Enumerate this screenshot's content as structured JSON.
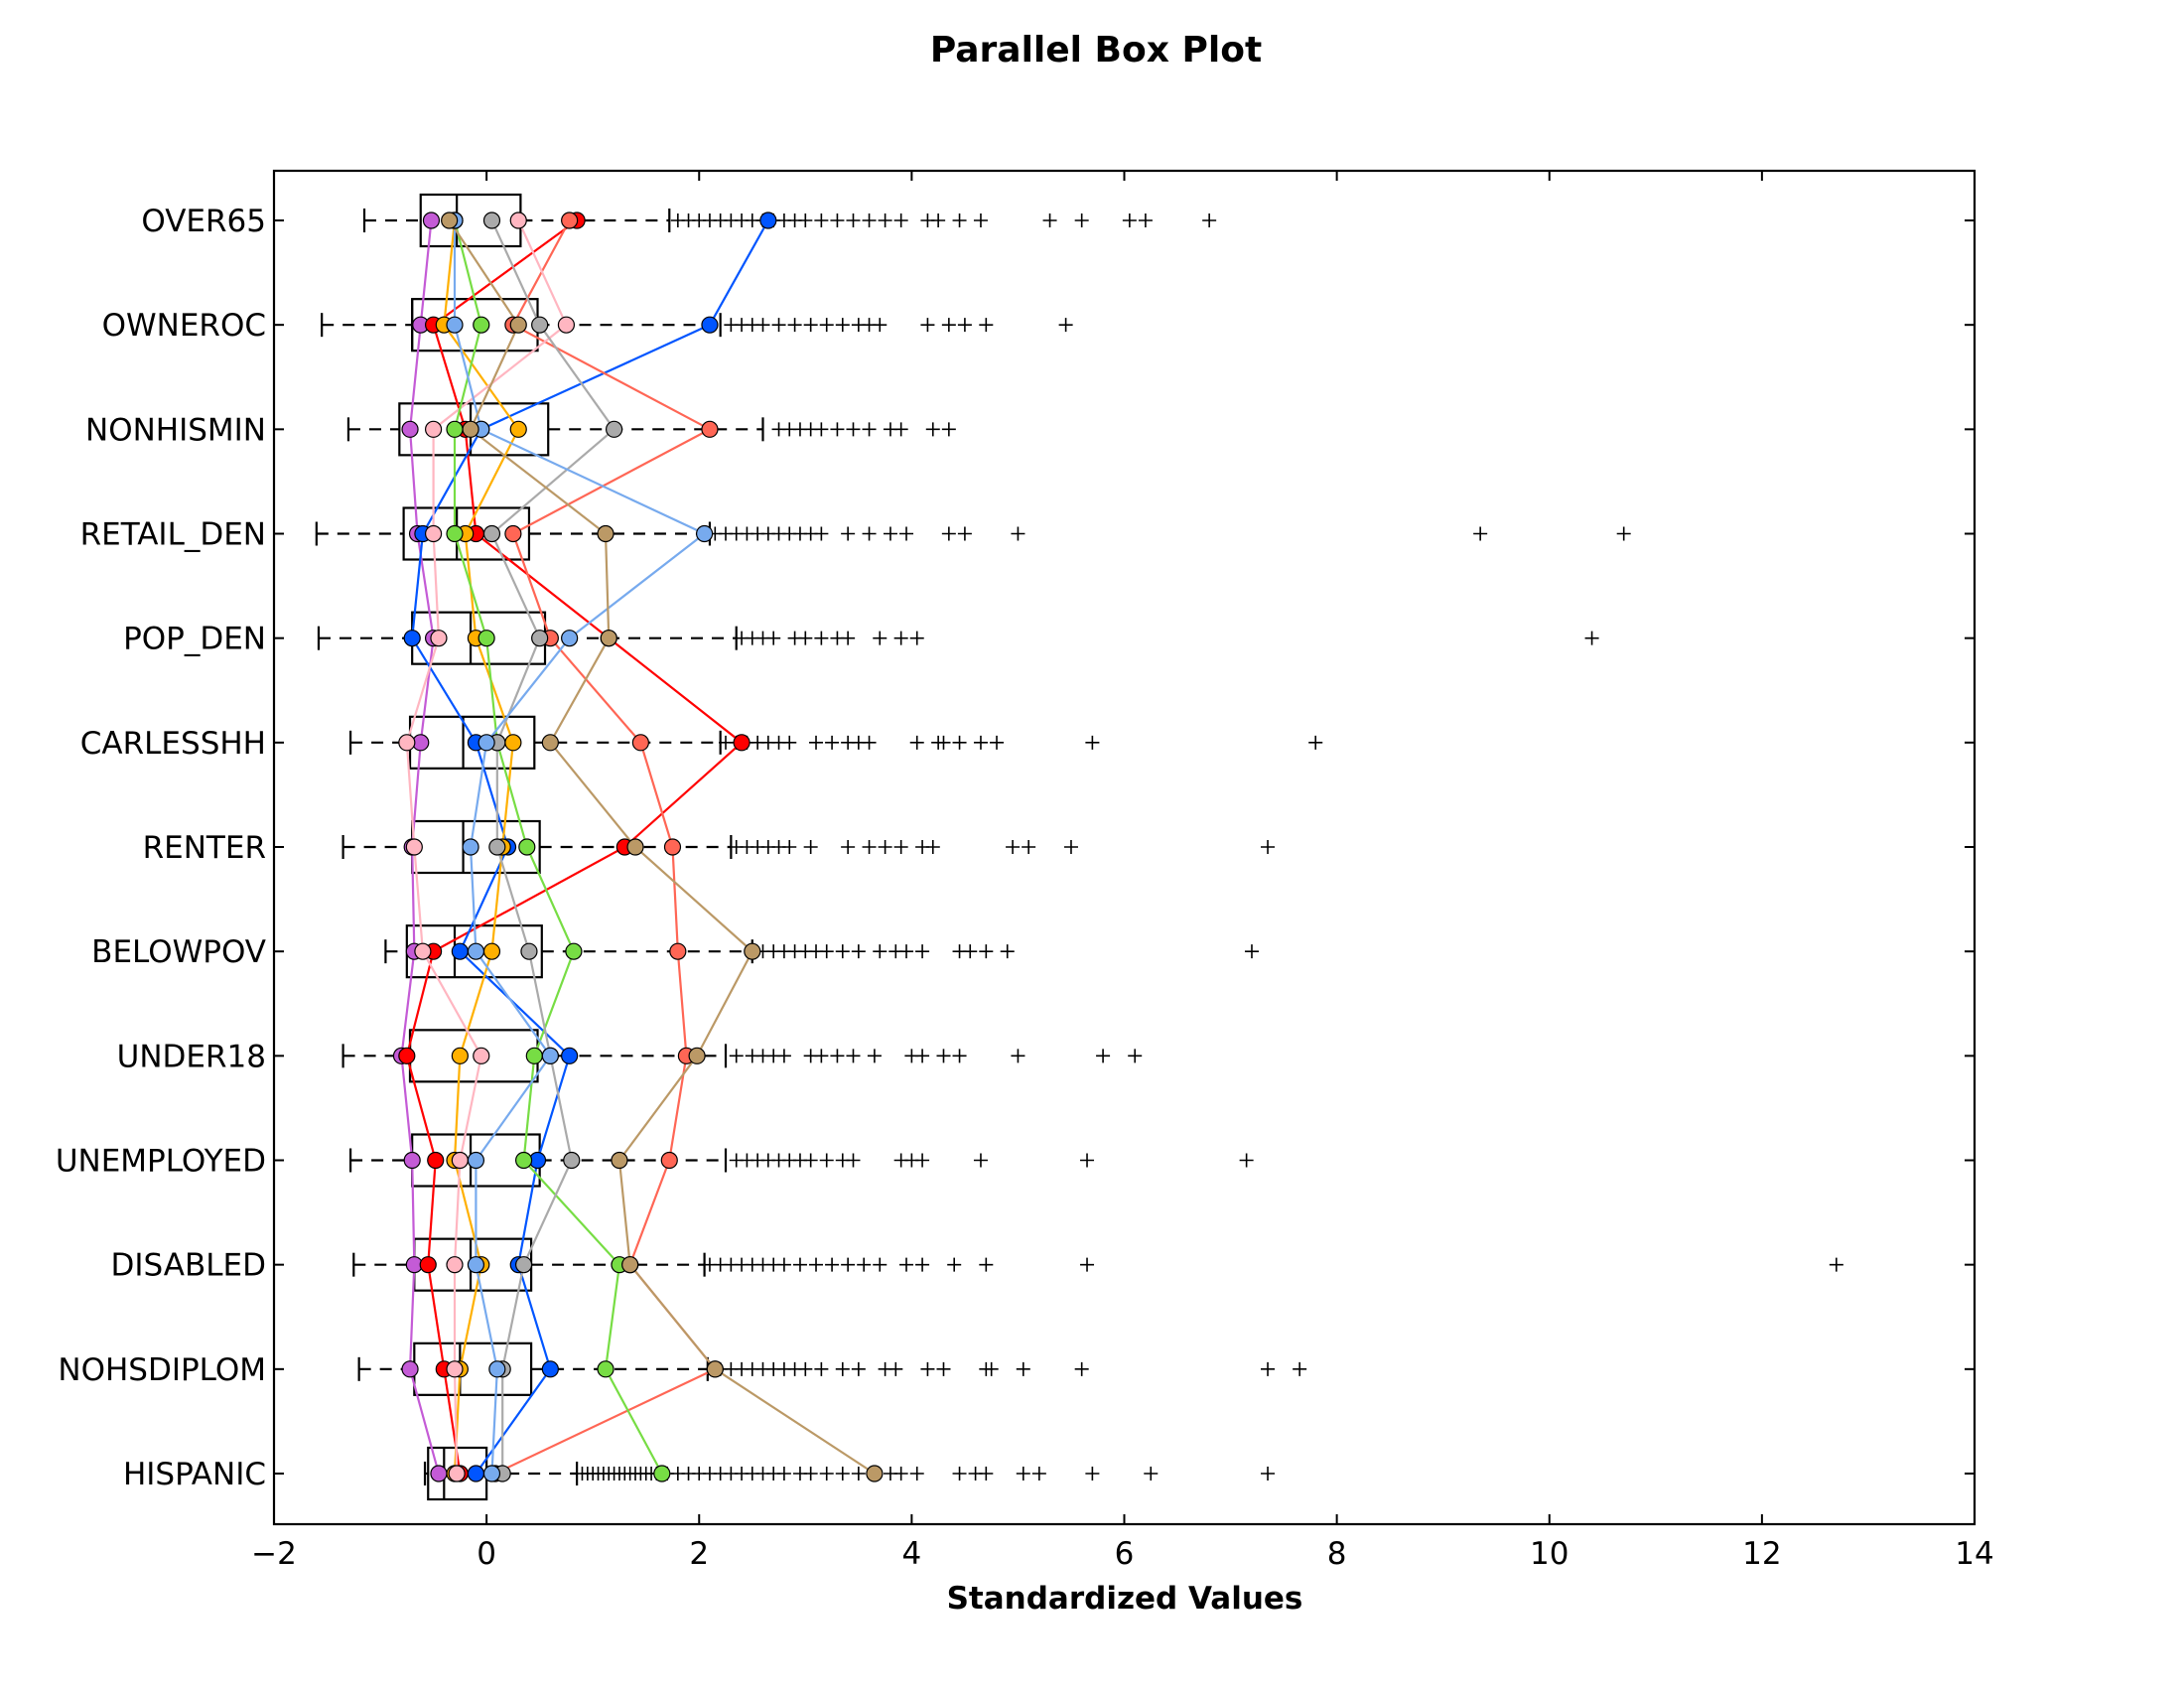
{
  "chart_data": {
    "type": "box",
    "title": "Parallel Box Plot",
    "xlabel": "Standardized Values",
    "ylabel": "",
    "xlim": [
      -2,
      14
    ],
    "xticks": [
      -2,
      0,
      2,
      4,
      6,
      8,
      10,
      12,
      14
    ],
    "xtick_labels": [
      "−2",
      "0",
      "2",
      "4",
      "6",
      "8",
      "10",
      "12",
      "14"
    ],
    "grid": false,
    "legend": "none",
    "categories": [
      "HISPANIC",
      "NOHSDIPLOM",
      "DISABLED",
      "UNEMPLOYED",
      "UNDER18",
      "BELOWPOV",
      "RENTER",
      "CARLESSHH",
      "POP_DEN",
      "RETAIL_DEN",
      "NONHISMIN",
      "OWNEROC",
      "OVER65"
    ],
    "boxes": [
      {
        "name": "HISPANIC",
        "whisker_low": -0.58,
        "q1": -0.55,
        "median": -0.4,
        "q3": 0.0,
        "whisker_high": 0.85,
        "outliers": [
          0.9,
          0.95,
          1.0,
          1.05,
          1.1,
          1.15,
          1.2,
          1.25,
          1.3,
          1.35,
          1.4,
          1.45,
          1.5,
          1.55,
          1.6,
          1.7,
          1.8,
          1.9,
          2.0,
          2.1,
          2.2,
          2.3,
          2.4,
          2.5,
          2.6,
          2.7,
          2.8,
          2.95,
          3.05,
          3.2,
          3.35,
          3.5,
          3.65,
          3.8,
          3.9,
          4.05,
          4.45,
          4.6,
          4.7,
          5.05,
          5.2,
          5.7,
          6.25,
          7.35
        ]
      },
      {
        "name": "NOHSDIPLOM",
        "whisker_low": -1.2,
        "q1": -0.68,
        "median": -0.25,
        "q3": 0.42,
        "whisker_high": 2.08,
        "outliers": [
          2.15,
          2.2,
          2.3,
          2.4,
          2.5,
          2.6,
          2.7,
          2.8,
          2.9,
          3.0,
          3.15,
          3.35,
          3.5,
          3.75,
          3.85,
          4.15,
          4.3,
          4.7,
          4.75,
          5.05,
          5.6,
          7.35,
          7.65
        ]
      },
      {
        "name": "DISABLED",
        "whisker_low": -1.25,
        "q1": -0.68,
        "median": -0.15,
        "q3": 0.42,
        "whisker_high": 2.05,
        "outliers": [
          2.1,
          2.2,
          2.3,
          2.4,
          2.5,
          2.6,
          2.7,
          2.8,
          2.95,
          3.1,
          3.25,
          3.4,
          3.55,
          3.7,
          3.95,
          4.1,
          4.4,
          4.7,
          5.65,
          12.7
        ]
      },
      {
        "name": "UNEMPLOYED",
        "whisker_low": -1.28,
        "q1": -0.7,
        "median": -0.15,
        "q3": 0.5,
        "whisker_high": 2.25,
        "outliers": [
          2.35,
          2.45,
          2.55,
          2.65,
          2.75,
          2.85,
          2.95,
          3.05,
          3.2,
          3.35,
          3.45,
          3.9,
          4.0,
          4.1,
          4.65,
          5.65,
          7.15
        ]
      },
      {
        "name": "UNDER18",
        "whisker_low": -1.35,
        "q1": -0.72,
        "median": -0.72,
        "q3": 0.48,
        "whisker_high": 2.25,
        "outliers": [
          2.35,
          2.5,
          2.6,
          2.7,
          2.8,
          3.05,
          3.15,
          3.3,
          3.45,
          3.65,
          4.0,
          4.1,
          4.3,
          4.45,
          5.0,
          5.8,
          6.1
        ]
      },
      {
        "name": "BELOWPOV",
        "whisker_low": -0.95,
        "q1": -0.75,
        "median": -0.3,
        "q3": 0.52,
        "whisker_high": 2.5,
        "outliers": [
          2.6,
          2.7,
          2.8,
          2.9,
          3.0,
          3.1,
          3.2,
          3.35,
          3.5,
          3.7,
          3.85,
          3.95,
          4.1,
          4.45,
          4.55,
          4.7,
          4.9,
          7.2
        ]
      },
      {
        "name": "RENTER",
        "whisker_low": -1.35,
        "q1": -0.7,
        "median": -0.22,
        "q3": 0.5,
        "whisker_high": 2.3,
        "outliers": [
          2.35,
          2.45,
          2.55,
          2.65,
          2.75,
          2.85,
          3.05,
          3.4,
          3.6,
          3.75,
          3.9,
          4.1,
          4.2,
          4.95,
          5.1,
          5.5,
          7.35
        ]
      },
      {
        "name": "CARLESSHH",
        "whisker_low": -1.28,
        "q1": -0.72,
        "median": -0.22,
        "q3": 0.45,
        "whisker_high": 2.2,
        "outliers": [
          2.25,
          2.35,
          2.45,
          2.55,
          2.65,
          2.75,
          2.85,
          3.1,
          3.25,
          3.4,
          3.5,
          3.6,
          4.05,
          4.25,
          4.3,
          4.45,
          4.65,
          4.8,
          5.7,
          7.8
        ]
      },
      {
        "name": "POP_DEN",
        "whisker_low": -1.58,
        "q1": -0.7,
        "median": -0.15,
        "q3": 0.55,
        "whisker_high": 2.35,
        "outliers": [
          2.4,
          2.5,
          2.6,
          2.7,
          2.9,
          3.0,
          3.15,
          3.3,
          3.4,
          3.7,
          3.9,
          4.05,
          10.4
        ]
      },
      {
        "name": "RETAIL_DEN",
        "whisker_low": -1.6,
        "q1": -0.78,
        "median": -0.28,
        "q3": 0.4,
        "whisker_high": 2.1,
        "outliers": [
          2.15,
          2.25,
          2.35,
          2.45,
          2.55,
          2.65,
          2.75,
          2.85,
          2.95,
          3.05,
          3.15,
          3.4,
          3.6,
          3.8,
          3.95,
          4.35,
          4.5,
          5.0,
          9.35,
          10.7
        ]
      },
      {
        "name": "NONHISMIN",
        "whisker_low": -1.3,
        "q1": -0.82,
        "median": -0.15,
        "q3": 0.58,
        "whisker_high": 2.6,
        "outliers": [
          2.75,
          2.85,
          2.95,
          3.05,
          3.15,
          3.3,
          3.45,
          3.6,
          3.8,
          3.9,
          4.2,
          4.35
        ]
      },
      {
        "name": "OWNEROC",
        "whisker_low": -1.55,
        "q1": -0.7,
        "median": -0.7,
        "q3": 0.48,
        "whisker_high": 2.2,
        "outliers": [
          2.3,
          2.4,
          2.5,
          2.6,
          2.75,
          2.9,
          3.05,
          3.2,
          3.35,
          3.5,
          3.6,
          3.7,
          4.15,
          4.35,
          4.5,
          4.7,
          5.45
        ]
      },
      {
        "name": "OVER65",
        "whisker_low": -1.15,
        "q1": -0.62,
        "median": -0.28,
        "q3": 0.32,
        "whisker_high": 1.72,
        "outliers": [
          1.8,
          1.9,
          2.0,
          2.1,
          2.2,
          2.3,
          2.4,
          2.5,
          2.6,
          2.7,
          2.8,
          2.9,
          3.0,
          3.15,
          3.3,
          3.45,
          3.6,
          3.75,
          3.9,
          4.15,
          4.25,
          4.45,
          4.65,
          5.3,
          5.6,
          6.05,
          6.2,
          6.8
        ]
      }
    ],
    "series": [
      {
        "color": "#c45bd6",
        "values": [
          -0.45,
          -0.72,
          -0.68,
          -0.7,
          -0.8,
          -0.68,
          -0.7,
          -0.62,
          -0.5,
          -0.65,
          -0.72,
          -0.62,
          -0.52
        ]
      },
      {
        "color": "#ff0000",
        "values": [
          -0.25,
          -0.4,
          -0.55,
          -0.48,
          -0.75,
          -0.5,
          1.3,
          2.4,
          1.15,
          -0.1,
          -0.2,
          -0.5,
          0.85
        ]
      },
      {
        "color": "#0055ff",
        "values": [
          -0.1,
          0.6,
          0.3,
          0.48,
          0.78,
          -0.25,
          0.2,
          -0.1,
          -0.7,
          -0.6,
          -0.05,
          2.1,
          2.65
        ]
      },
      {
        "color": "#ff6655",
        "values": [
          0.08,
          2.15,
          1.35,
          1.72,
          1.88,
          1.8,
          1.75,
          1.45,
          0.6,
          0.25,
          2.1,
          0.25,
          0.78
        ]
      },
      {
        "color": "#ffb000",
        "values": [
          -0.3,
          -0.25,
          -0.05,
          -0.3,
          -0.25,
          0.05,
          0.15,
          0.25,
          -0.1,
          -0.2,
          0.3,
          -0.4,
          -0.3
        ]
      },
      {
        "color": "#ffb6c1",
        "values": [
          -0.28,
          -0.3,
          -0.3,
          -0.25,
          -0.05,
          -0.6,
          -0.68,
          -0.75,
          -0.45,
          -0.5,
          -0.5,
          0.75,
          0.3
        ]
      },
      {
        "color": "#77dd44",
        "values": [
          1.65,
          1.12,
          1.25,
          0.35,
          0.45,
          0.82,
          0.38,
          0.1,
          0.0,
          -0.3,
          -0.3,
          -0.05,
          -0.3
        ]
      },
      {
        "color": "#aaaaaa",
        "values": [
          0.15,
          0.15,
          0.35,
          0.8,
          0.6,
          0.4,
          0.1,
          0.1,
          0.5,
          0.05,
          1.2,
          0.5,
          0.05
        ]
      },
      {
        "color": "#77aaee",
        "values": [
          0.05,
          0.1,
          -0.1,
          -0.1,
          0.6,
          -0.1,
          -0.15,
          0.0,
          0.78,
          2.05,
          -0.05,
          -0.3,
          -0.3
        ]
      },
      {
        "color": "#bb9966",
        "values": [
          3.65,
          2.15,
          1.35,
          1.25,
          1.98,
          2.5,
          1.4,
          0.6,
          1.15,
          1.12,
          -0.15,
          0.3,
          -0.35
        ]
      }
    ]
  }
}
